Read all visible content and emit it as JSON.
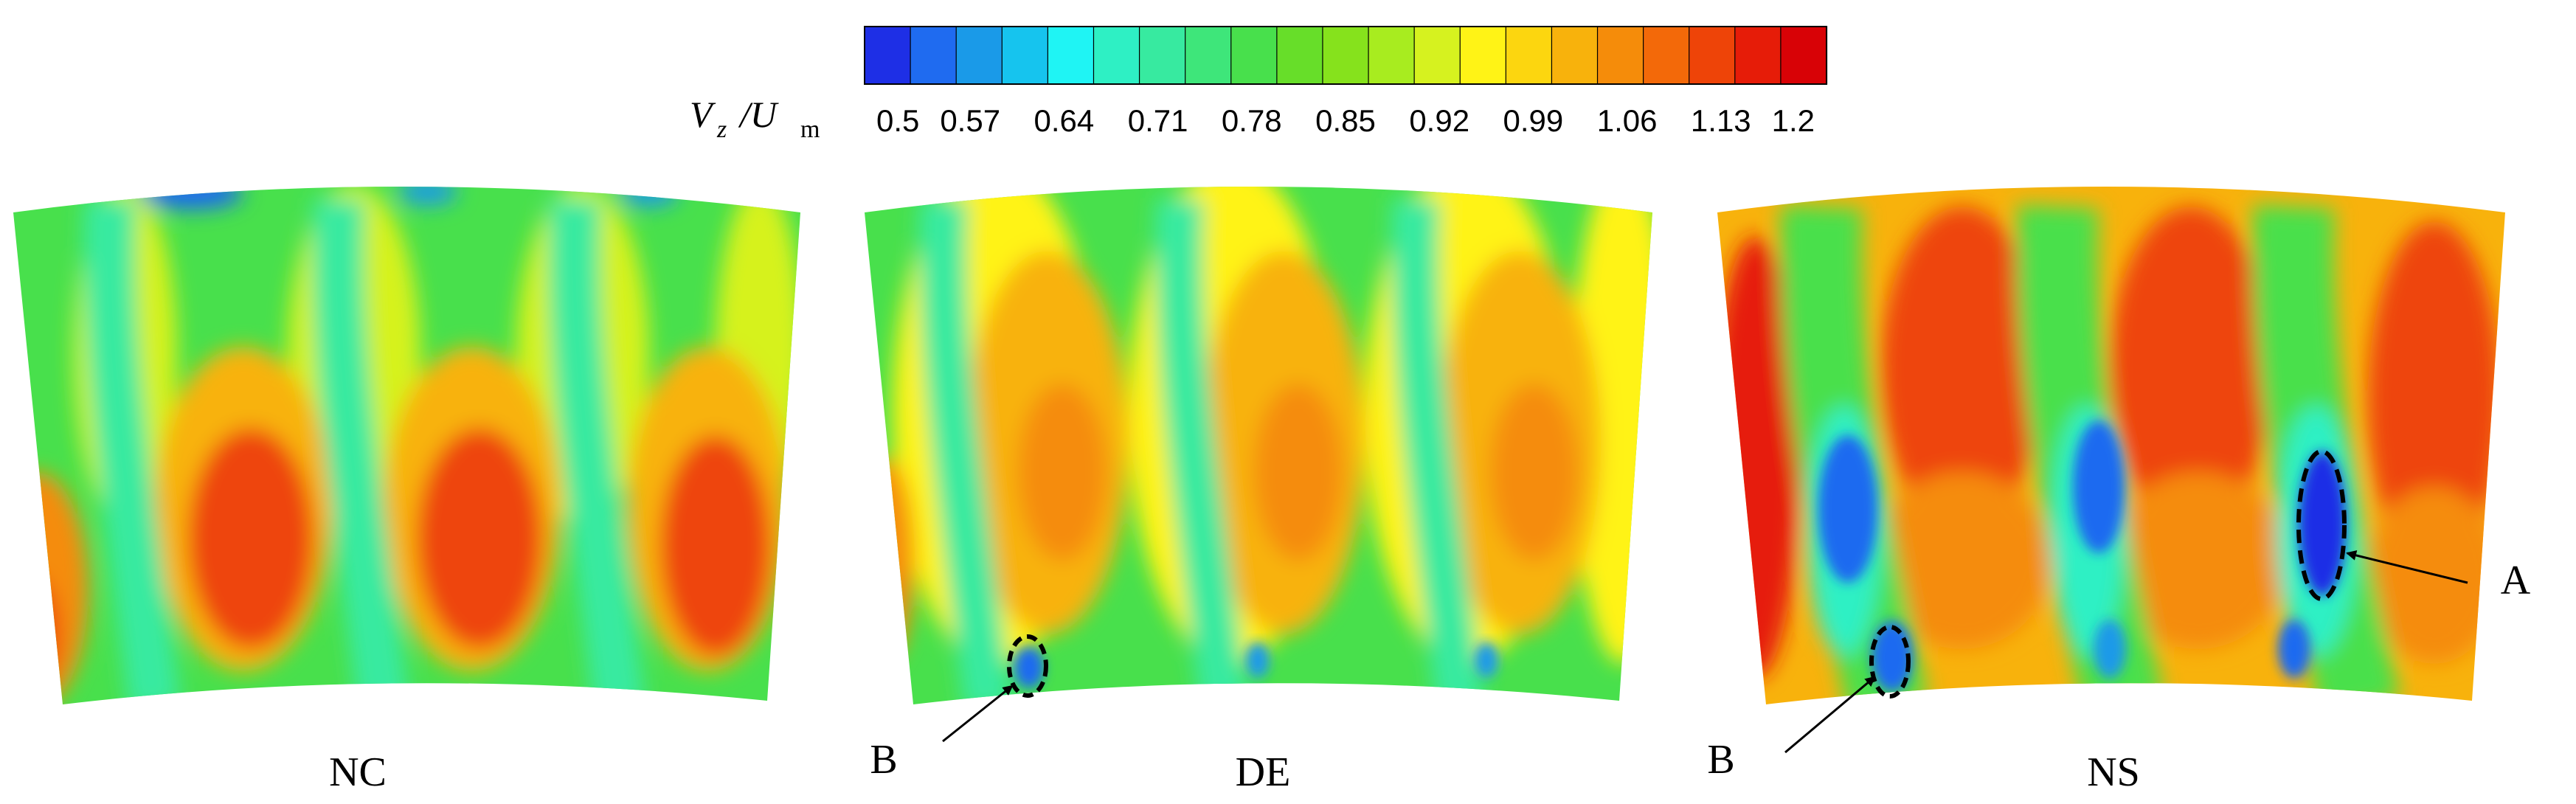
{
  "colorbar": {
    "label_main": "V",
    "label_sub1": "z",
    "label_sep": "/U",
    "label_sub2": "m",
    "ticks": [
      "0.5",
      "0.57",
      "0.64",
      "0.71",
      "0.78",
      "0.85",
      "0.92",
      "0.99",
      "1.06",
      "1.13",
      "1.2"
    ],
    "colors": [
      "#1e2fe6",
      "#1f6bf0",
      "#1a9ae8",
      "#16c4ee",
      "#1ff4f4",
      "#2ef0c4",
      "#37eaa0",
      "#3ee67a",
      "#48e04c",
      "#67de29",
      "#86e21c",
      "#a8ec1f",
      "#d6f21f",
      "#fff316",
      "#fcd60f",
      "#f8b20c",
      "#f58c0a",
      "#f36909",
      "#ee4408",
      "#e61c08",
      "#d80206"
    ]
  },
  "panels": [
    {
      "label": "NC"
    },
    {
      "label": "DE"
    },
    {
      "label": "NS"
    }
  ],
  "annotations": {
    "A": "A",
    "B1": "B",
    "B2": "B"
  }
}
